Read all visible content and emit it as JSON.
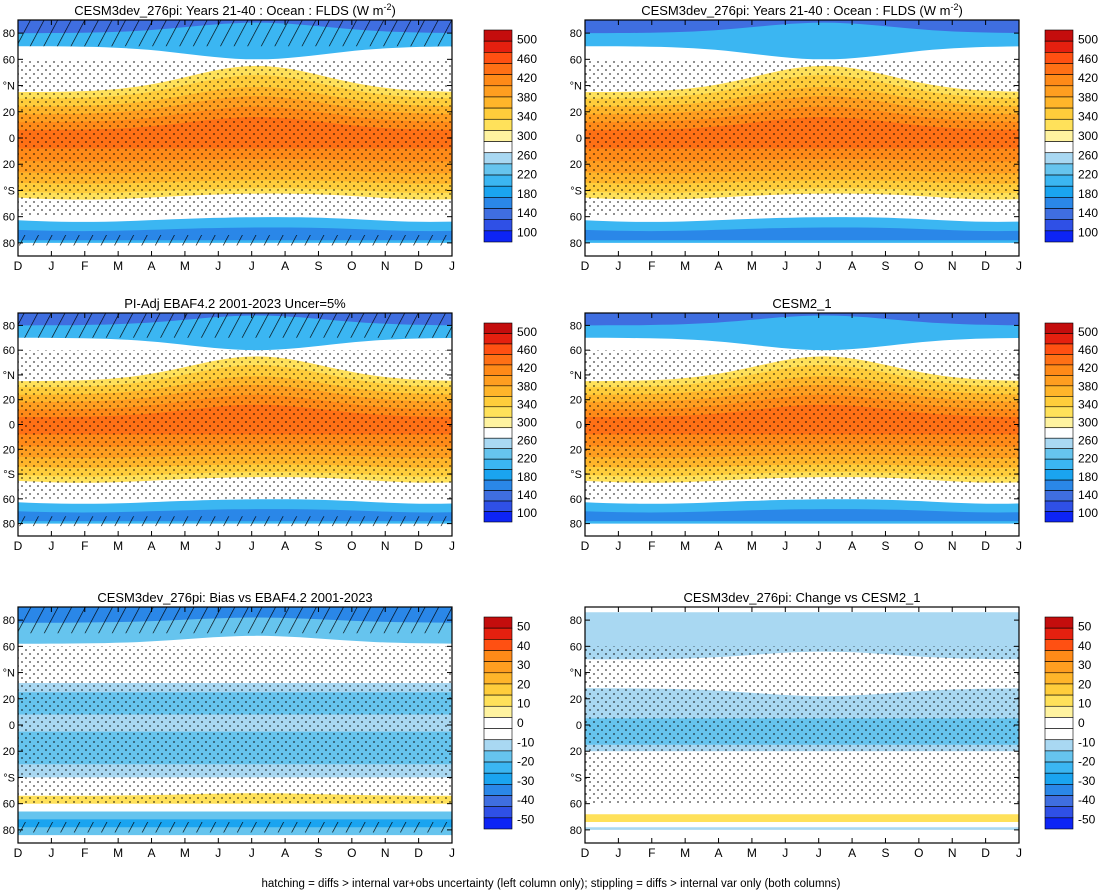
{
  "footer_note": "hatching = diffs > internal var+obs uncertainty (left column only); stippling = diffs > internal var only (both columns)",
  "palettes": {
    "absolute": [
      "#0d24f5",
      "#2f50e6",
      "#3f6ee0",
      "#2a87e8",
      "#1aa4f0",
      "#3bb6f2",
      "#66c4ee",
      "#a9d8f2",
      "#ffffff",
      "#fff3a0",
      "#ffe15a",
      "#ffcd3b",
      "#ffb52a",
      "#ff9e20",
      "#ff8a18",
      "#ff7015",
      "#ff5012",
      "#e5200f",
      "#c40d0d"
    ],
    "difference": [
      "#0d24f5",
      "#2f50e6",
      "#3f6ee0",
      "#2a87e8",
      "#1aa4f0",
      "#3bb6f2",
      "#66c4ee",
      "#a9d8f2",
      "#ffffff",
      "#ffffff",
      "#fff3a0",
      "#ffe15a",
      "#ffcd3b",
      "#ffb52a",
      "#ff9e20",
      "#ff8a18",
      "#ff5012",
      "#e5200f",
      "#c40d0d"
    ]
  },
  "chart_data": [
    {
      "type": "heatmap",
      "title": "CESM3dev_276pi: Years 21-40 : Ocean : FLDS (W m",
      "title_sup": "-2",
      "title_end": ")",
      "x_ticks": [
        "D",
        "J",
        "F",
        "M",
        "A",
        "M",
        "J",
        "J",
        "A",
        "S",
        "O",
        "N",
        "D",
        "J"
      ],
      "y_ticks": [
        "80",
        "60",
        "°N",
        "20",
        "0",
        "20",
        "°S",
        "60",
        "80"
      ],
      "ylim": [
        -90,
        90
      ],
      "colorbar_labels": [
        "100",
        "140",
        "180",
        "220",
        "260",
        "300",
        "340",
        "380",
        "420",
        "460",
        "500"
      ],
      "palette": "absolute",
      "field": "absolute",
      "hatching": true,
      "stippling": true
    },
    {
      "type": "heatmap",
      "title": "CESM3dev_276pi: Years 21-40 : Ocean : FLDS (W m",
      "title_sup": "-2",
      "title_end": ")",
      "x_ticks": [
        "D",
        "J",
        "F",
        "M",
        "A",
        "M",
        "J",
        "J",
        "A",
        "S",
        "O",
        "N",
        "D",
        "J"
      ],
      "y_ticks": [
        "80",
        "60",
        "°N",
        "20",
        "0",
        "20",
        "°S",
        "60",
        "80"
      ],
      "ylim": [
        -90,
        90
      ],
      "colorbar_labels": [
        "100",
        "140",
        "180",
        "220",
        "260",
        "300",
        "340",
        "380",
        "420",
        "460",
        "500"
      ],
      "palette": "absolute",
      "field": "absolute",
      "hatching": false,
      "stippling": true
    },
    {
      "type": "heatmap",
      "title": "PI-Adj EBAF4.2 2001-2023 Uncer=5%",
      "x_ticks": [
        "D",
        "J",
        "F",
        "M",
        "A",
        "M",
        "J",
        "J",
        "A",
        "S",
        "O",
        "N",
        "D",
        "J"
      ],
      "y_ticks": [
        "80",
        "60",
        "°N",
        "20",
        "0",
        "20",
        "°S",
        "60",
        "80"
      ],
      "ylim": [
        -90,
        90
      ],
      "colorbar_labels": [
        "100",
        "140",
        "180",
        "220",
        "260",
        "300",
        "340",
        "380",
        "420",
        "460",
        "500"
      ],
      "palette": "absolute",
      "field": "absolute",
      "hatching": true,
      "stippling": true
    },
    {
      "type": "heatmap",
      "title": "CESM2_1",
      "x_ticks": [
        "D",
        "J",
        "F",
        "M",
        "A",
        "M",
        "J",
        "J",
        "A",
        "S",
        "O",
        "N",
        "D",
        "J"
      ],
      "y_ticks": [
        "80",
        "60",
        "°N",
        "20",
        "0",
        "20",
        "°S",
        "60",
        "80"
      ],
      "ylim": [
        -90,
        90
      ],
      "colorbar_labels": [
        "100",
        "140",
        "180",
        "220",
        "260",
        "300",
        "340",
        "380",
        "420",
        "460",
        "500"
      ],
      "palette": "absolute",
      "field": "absolute",
      "hatching": false,
      "stippling": true
    },
    {
      "type": "heatmap",
      "title": "CESM3dev_276pi: Bias vs EBAF4.2 2001-2023",
      "x_ticks": [
        "D",
        "J",
        "F",
        "M",
        "A",
        "M",
        "J",
        "J",
        "A",
        "S",
        "O",
        "N",
        "D",
        "J"
      ],
      "y_ticks": [
        "80",
        "60",
        "°N",
        "20",
        "0",
        "20",
        "°S",
        "60",
        "80"
      ],
      "ylim": [
        -90,
        90
      ],
      "colorbar_labels": [
        "-50",
        "-40",
        "-30",
        "-20",
        "-10",
        "0",
        "10",
        "20",
        "30",
        "40",
        "50"
      ],
      "palette": "difference",
      "field": "bias",
      "hatching": true,
      "stippling": true
    },
    {
      "type": "heatmap",
      "title": "CESM3dev_276pi: Change vs CESM2_1",
      "x_ticks": [
        "D",
        "J",
        "F",
        "M",
        "A",
        "M",
        "J",
        "J",
        "A",
        "S",
        "O",
        "N",
        "D",
        "J"
      ],
      "y_ticks": [
        "80",
        "60",
        "°N",
        "20",
        "0",
        "20",
        "°S",
        "60",
        "80"
      ],
      "ylim": [
        -90,
        90
      ],
      "colorbar_labels": [
        "-50",
        "-40",
        "-30",
        "-20",
        "-10",
        "0",
        "10",
        "20",
        "30",
        "40",
        "50"
      ],
      "palette": "difference",
      "field": "change",
      "hatching": false,
      "stippling": true
    }
  ]
}
